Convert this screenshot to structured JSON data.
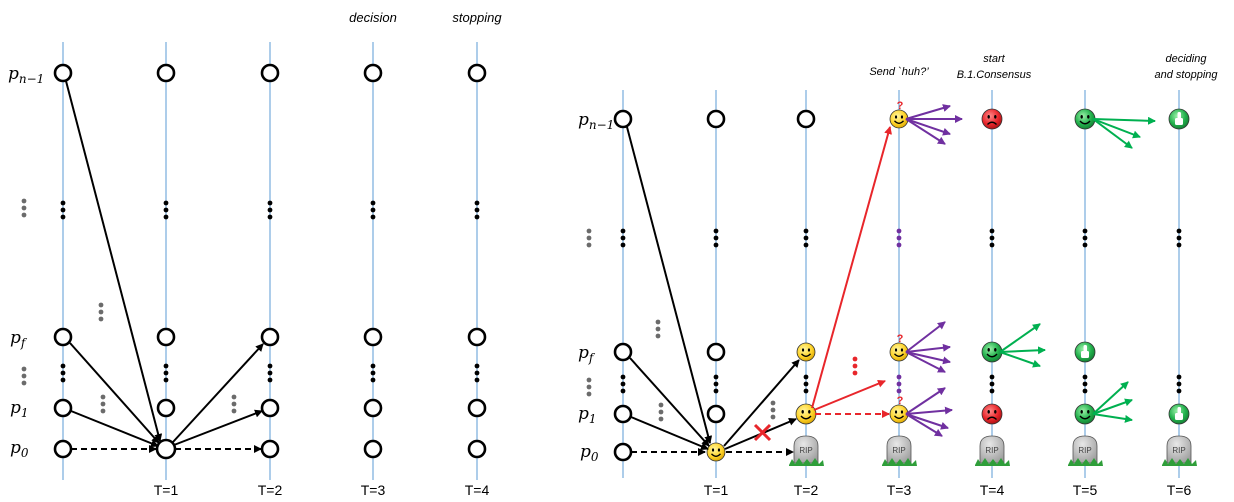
{
  "left_panel": {
    "process_labels": {
      "pn1": "p",
      "pn1_sub": "n−1",
      "pf": "p",
      "pf_sub": "f",
      "p1": "p",
      "p1_sub": "1",
      "p0": "p",
      "p0_sub": "0"
    },
    "time_labels": [
      "T=1",
      "T=2",
      "T=3",
      "T=4"
    ],
    "top_labels": {
      "t3": "decision",
      "t4": "stopping"
    }
  },
  "right_panel": {
    "process_labels": {
      "pn1": "p",
      "pn1_sub": "n−1",
      "pf": "p",
      "pf_sub": "f",
      "p1": "p",
      "p1_sub": "1",
      "p0": "p",
      "p0_sub": "0"
    },
    "time_labels": [
      "T=1",
      "T=2",
      "T=3",
      "T=4",
      "T=5",
      "T=6"
    ],
    "top_labels": {
      "t3": "Send `huh?’",
      "t4_line1": "start",
      "t4_line2": "B.1.Consensus",
      "t6_line1": "deciding",
      "t6_line2": "and stopping"
    },
    "tombstone_text": "RIP",
    "huh_mark": "?"
  },
  "colors": {
    "timeline": "#5b9bd5",
    "arrow_black": "#000000",
    "arrow_red": "#e8262b",
    "arrow_purple": "#7030a0",
    "arrow_green": "#00b050",
    "smiley_yellow": "#ffd42a",
    "sad_red": "#e8262b",
    "happy_green": "#22b14c",
    "dots_gray": "#6b6b6b"
  }
}
